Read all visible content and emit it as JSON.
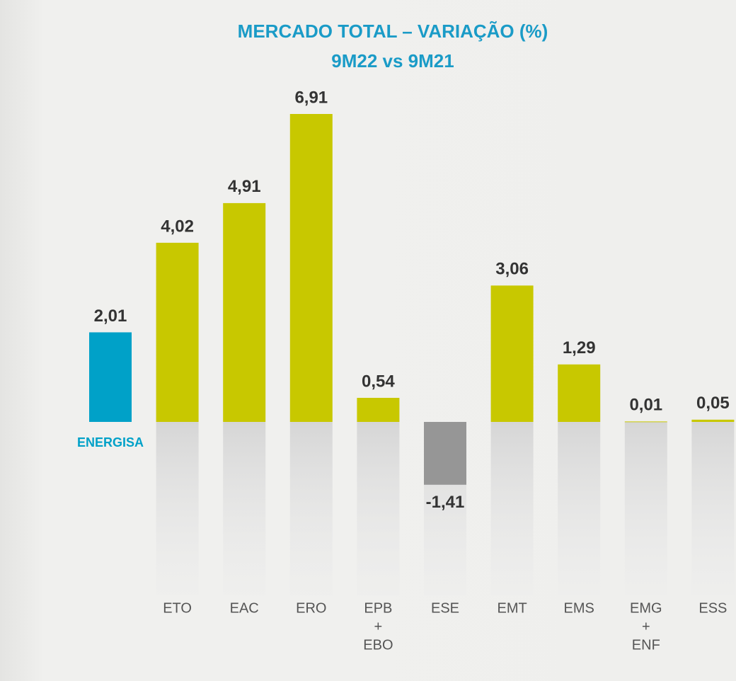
{
  "chart_data": {
    "type": "bar",
    "title": [
      "MERCADO TOTAL – VARIAÇÃO  (%)",
      "9M22 vs 9M21"
    ],
    "categories": [
      [
        "ENERGISA"
      ],
      [
        "ETO"
      ],
      [
        "EAC"
      ],
      [
        "ERO"
      ],
      [
        "EPB",
        "+",
        "EBO"
      ],
      [
        "ESE"
      ],
      [
        "EMT"
      ],
      [
        "EMS"
      ],
      [
        "EMG",
        "+",
        "ENF"
      ],
      [
        "ESS"
      ]
    ],
    "values": [
      2.01,
      4.02,
      4.91,
      6.91,
      0.54,
      -1.41,
      3.06,
      1.29,
      0.01,
      0.05
    ],
    "value_labels": [
      "2,01",
      "4,02",
      "4,91",
      "6,91",
      "0,54",
      "-1,41",
      "3,06",
      "1,29",
      "0,01",
      "0,05"
    ],
    "colors": [
      "#00a1c8",
      "#c8c800",
      "#c8c800",
      "#c8c800",
      "#c8c800",
      "#969696",
      "#c8c800",
      "#c8c800",
      "#c8c800",
      "#c8c800"
    ],
    "highlight": 0
  }
}
